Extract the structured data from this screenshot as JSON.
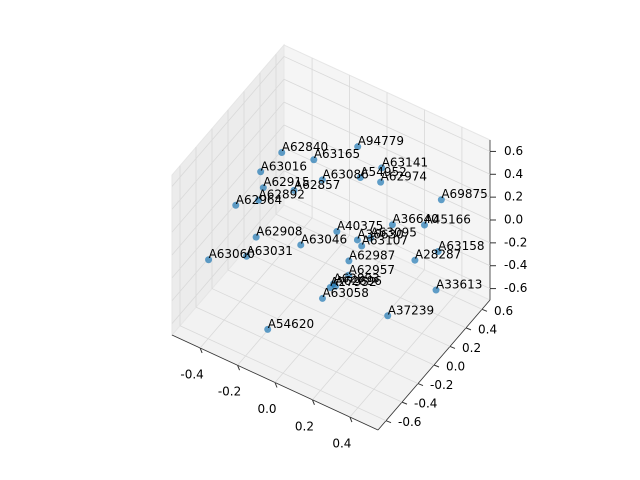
{
  "chart_data": {
    "type": "scatter3d",
    "color": "#1f77b4",
    "labels": [
      "A94779",
      "A62840",
      "A63165",
      "A63141",
      "A54952",
      "A63016",
      "A63086",
      "A62974",
      "A62915",
      "A62857",
      "A69875",
      "A62964",
      "A62892",
      "A36640",
      "A45166",
      "A62908",
      "A40375",
      "A36630",
      "A63095",
      "A63031",
      "A63046",
      "A63107",
      "A63158",
      "A63060",
      "A62987",
      "A28287",
      "A62957",
      "A62893",
      "A62896",
      "A27952",
      "A63058",
      "A33613",
      "A37239",
      "A54620"
    ],
    "x": [
      0.04,
      -0.31,
      -0.19,
      0.07,
      0.02,
      -0.38,
      -0.17,
      0.06,
      -0.37,
      -0.27,
      0.35,
      -0.47,
      -0.4,
      0.14,
      0.29,
      -0.34,
      -0.05,
      0.03,
      0.1,
      -0.34,
      -0.17,
      0.04,
      0.35,
      -0.5,
      0.04,
      0.29,
      0.06,
      0.03,
      0.02,
      0.03,
      0.01,
      0.39,
      0.29,
      -0.15
    ],
    "y": [
      0.24,
      0.11,
      0.23,
      0.47,
      0.32,
      0.01,
      0.29,
      0.48,
      0.02,
      0.17,
      0.56,
      -0.09,
      0.03,
      0.44,
      0.49,
      -0.14,
      0.19,
      0.26,
      0.26,
      -0.26,
      0.02,
      0.29,
      0.52,
      -0.36,
      0.13,
      0.37,
      0.08,
      -0.04,
      0.01,
      -0.08,
      -0.13,
      0.4,
      0.03,
      -0.44
    ],
    "z": [
      0.63,
      0.42,
      0.35,
      0.28,
      0.28,
      0.28,
      0.14,
      0.14,
      0.14,
      0.07,
      0.14,
      0.0,
      0.0,
      -0.14,
      -0.07,
      -0.14,
      -0.14,
      -0.21,
      -0.14,
      -0.21,
      -0.21,
      -0.28,
      -0.28,
      -0.28,
      -0.28,
      -0.28,
      -0.35,
      -0.35,
      -0.42,
      -0.35,
      -0.42,
      -0.49,
      -0.49,
      -0.56
    ],
    "xlim": [
      -0.55,
      0.55
    ],
    "ylim": [
      -0.7,
      0.7
    ],
    "zlim": [
      -0.7,
      0.7
    ],
    "xticks": [
      -0.4,
      -0.2,
      {
        "value": 0,
        "label": "0.0"
      },
      0.2,
      0.4
    ],
    "yticks": [
      -0.6,
      -0.4,
      -0.2,
      {
        "value": 0,
        "label": "0.0"
      },
      0.2,
      0.4,
      0.6
    ],
    "zticks": [
      -0.6,
      -0.4,
      -0.2,
      {
        "value": 0,
        "label": "0.0"
      },
      0.2,
      0.4,
      0.6
    ],
    "grid": true
  }
}
